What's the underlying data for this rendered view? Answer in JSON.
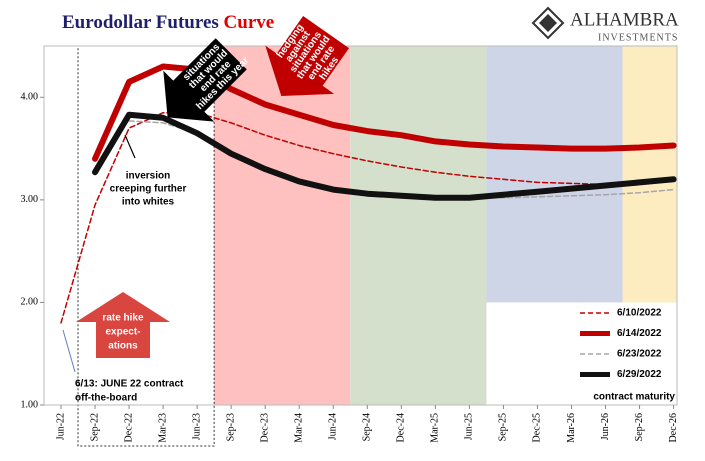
{
  "chart_data": {
    "type": "line",
    "title": "Eurodollar Futures",
    "title_highlight": "Curve",
    "logo": [
      "ALHAMBRA",
      "INVESTMENTS"
    ],
    "x_axis_label": "contract maturity",
    "categories": [
      "Jun-22",
      "Sep-22",
      "Dec-22",
      "Mar-23",
      "Jun-23",
      "Sep-23",
      "Dec-23",
      "Mar-24",
      "Jun-24",
      "Sep-24",
      "Dec-24",
      "Mar-25",
      "Jun-25",
      "Sep-25",
      "Dec-25",
      "Mar-26",
      "Jun-26",
      "Sep-26",
      "Dec-26"
    ],
    "ylim": [
      1,
      4.5
    ],
    "yticks": [
      {
        "value": 1,
        "label": "1.00"
      },
      {
        "value": 2,
        "label": "2.00"
      },
      {
        "value": 3,
        "label": "3.00"
      },
      {
        "value": 4,
        "label": "4.00"
      }
    ],
    "series": [
      {
        "name": "6/10/2022",
        "color": "#c00000",
        "dash": true,
        "width": 1.5,
        "values": [
          1.8,
          2.95,
          3.7,
          3.85,
          3.85,
          3.75,
          3.63,
          3.53,
          3.45,
          3.38,
          3.32,
          3.27,
          3.23,
          3.2,
          3.17,
          3.16,
          3.15,
          null,
          null
        ]
      },
      {
        "name": "6/14/2022",
        "color": "#c00000",
        "dash": false,
        "width": 6,
        "values": [
          null,
          3.4,
          4.15,
          4.3,
          4.27,
          4.08,
          3.93,
          3.83,
          3.73,
          3.67,
          3.63,
          3.57,
          3.54,
          3.52,
          3.51,
          3.5,
          3.5,
          3.51,
          3.53
        ]
      },
      {
        "name": "6/23/2022",
        "color": "#a6a6a6",
        "dash": true,
        "width": 1.5,
        "values": [
          null,
          null,
          3.77,
          3.75,
          3.65,
          3.45,
          3.32,
          3.2,
          3.12,
          3.07,
          3.04,
          3.02,
          3.02,
          3.02,
          3.03,
          3.04,
          3.05,
          3.07,
          3.1
        ]
      },
      {
        "name": "6/29/2022",
        "color": "#111111",
        "dash": false,
        "width": 6,
        "values": [
          null,
          3.27,
          3.83,
          3.8,
          3.65,
          3.45,
          3.3,
          3.18,
          3.1,
          3.06,
          3.04,
          3.02,
          3.02,
          3.05,
          3.08,
          3.11,
          3.14,
          3.17,
          3.2
        ]
      }
    ],
    "annotations": {
      "hedging": [
        "hedging",
        "against",
        "situations",
        "that would",
        "end rate",
        "hikes"
      ],
      "situations": [
        "situations",
        "that would",
        "end rate",
        "hikes this year"
      ],
      "inversion": [
        "inversion",
        "creeping further",
        "into whites"
      ],
      "rate_hike": [
        "rate hike",
        "expect-",
        "ations"
      ],
      "contract": [
        "6/13: JUNE 22 contract",
        "off-the-board"
      ]
    }
  }
}
